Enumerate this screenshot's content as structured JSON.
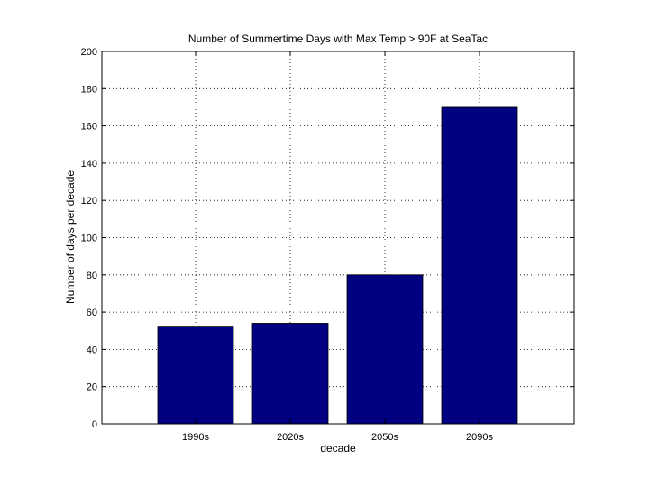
{
  "chart_data": {
    "type": "bar",
    "title": "Number of Summertime Days with Max Temp > 90F at SeaTac",
    "xlabel": "decade",
    "ylabel": "Number of days per decade",
    "categories": [
      "1990s",
      "2020s",
      "2050s",
      "2090s"
    ],
    "values": [
      52,
      54,
      80,
      170
    ],
    "ylim": [
      0,
      200
    ],
    "yticks": [
      0,
      20,
      40,
      60,
      80,
      100,
      120,
      140,
      160,
      180,
      200
    ],
    "grid": true,
    "bar_color": "#000080"
  }
}
